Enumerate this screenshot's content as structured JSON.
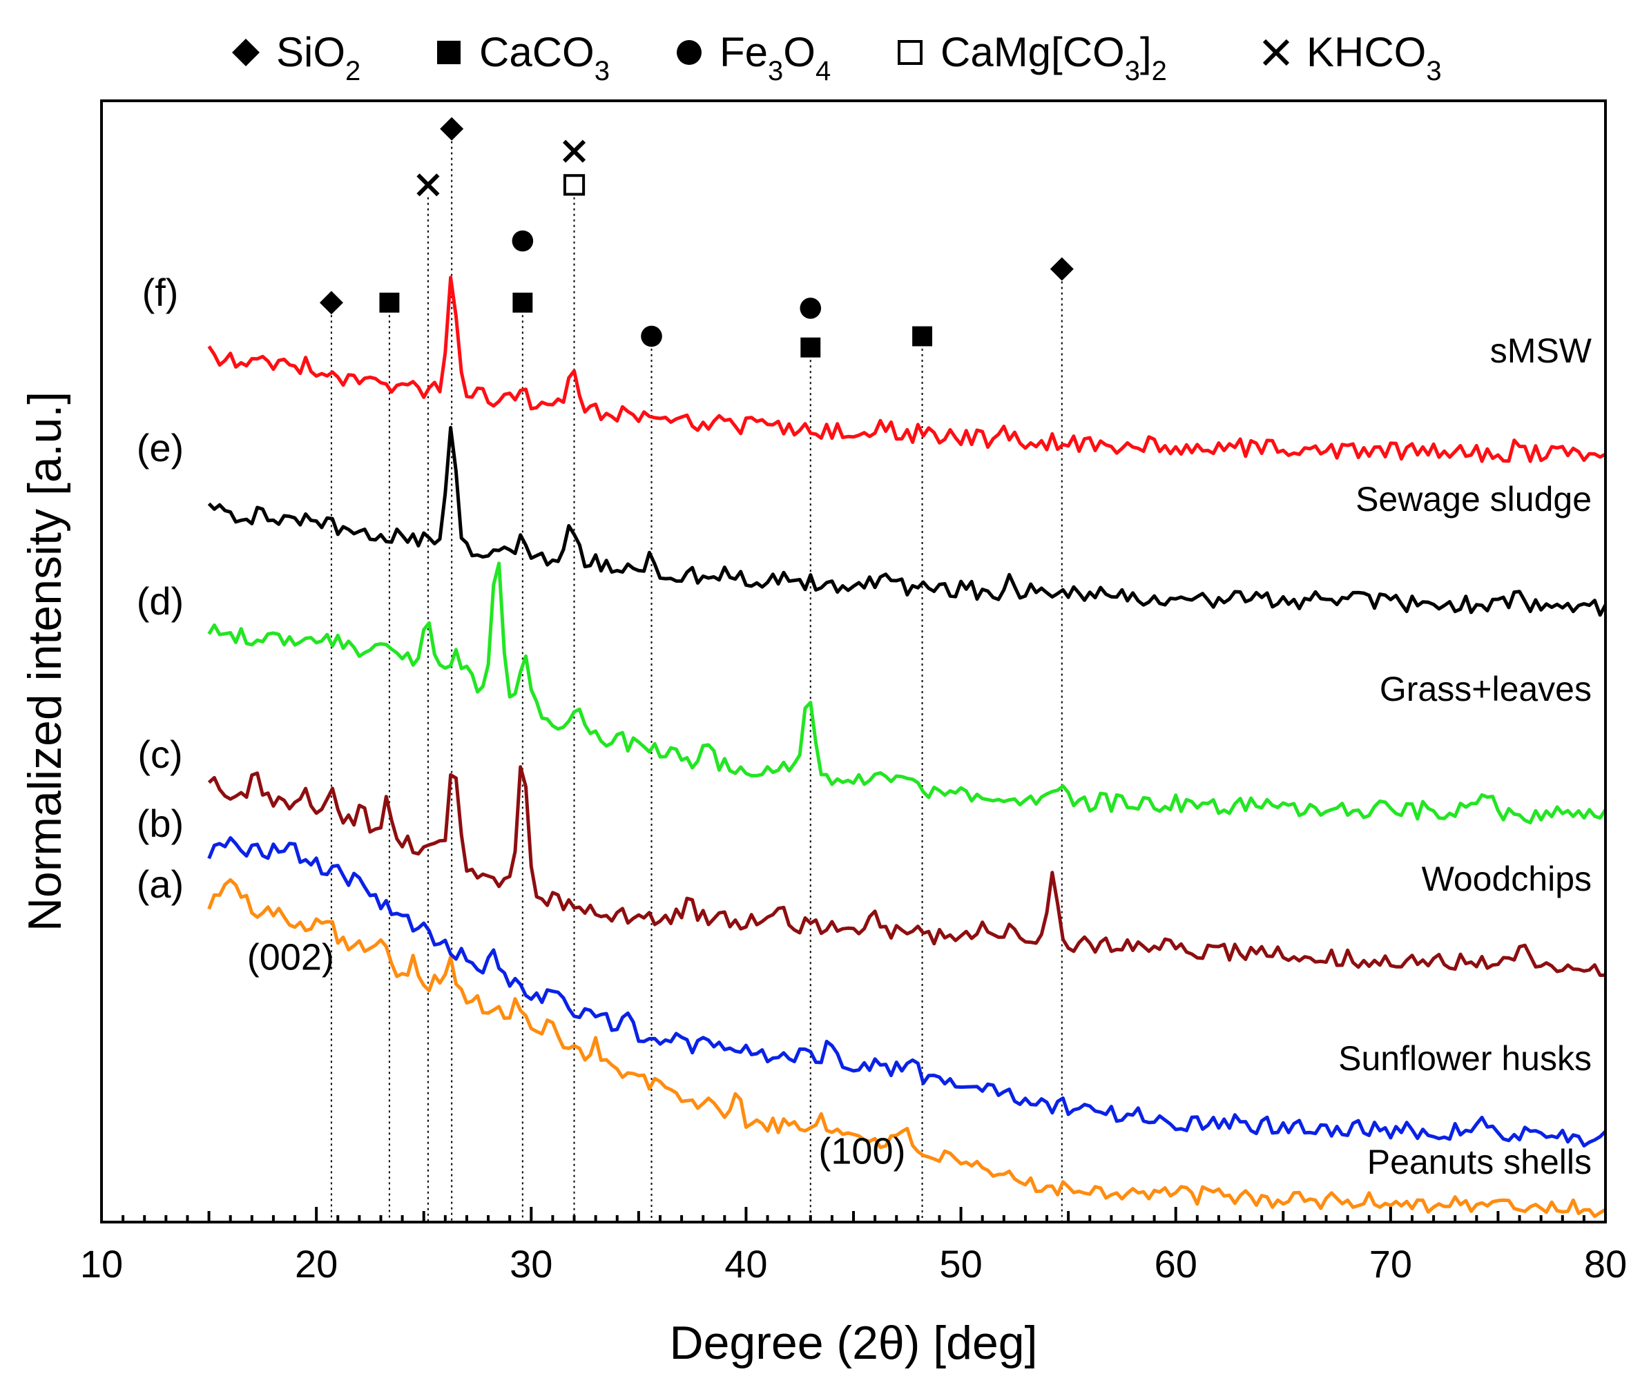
{
  "chart_data": {
    "type": "line",
    "title": "",
    "xlabel": "Degree (2θ) [deg]",
    "ylabel": "Normalized intensity [a.u.]",
    "xlim": [
      10,
      80
    ],
    "xticks": [
      "10",
      "20",
      "30",
      "40",
      "50",
      "60",
      "70",
      "80"
    ],
    "ylim": [
      0,
      100
    ],
    "grid": false,
    "legend": {
      "placement": "top-outside",
      "items": [
        {
          "marker": "diamond",
          "name": "SiO",
          "sub": "2"
        },
        {
          "marker": "square",
          "name": "CaCO",
          "sub": "3"
        },
        {
          "marker": "circle",
          "name": "Fe",
          "sub": "3",
          "name2": "O",
          "sub2": "4"
        },
        {
          "marker": "open-square",
          "name": "CaMg[CO",
          "sub": "3",
          "name2": "]",
          "sub2": "2"
        },
        {
          "marker": "cross",
          "name": "KHCO",
          "sub": "3"
        }
      ]
    },
    "reflections": [
      {
        "x": 20.7,
        "markers": [
          {
            "shape": "diamond",
            "y": 82.0
          }
        ]
      },
      {
        "x": 23.4,
        "markers": [
          {
            "shape": "square",
            "y": 82.0
          }
        ]
      },
      {
        "x": 25.2,
        "markers": [
          {
            "shape": "cross",
            "y": 92.5
          }
        ]
      },
      {
        "x": 26.3,
        "markers": [
          {
            "shape": "diamond",
            "y": 97.5
          }
        ]
      },
      {
        "x": 29.6,
        "markers": [
          {
            "shape": "square",
            "y": 82.0
          },
          {
            "shape": "circle",
            "y": 87.5
          }
        ]
      },
      {
        "x": 32.0,
        "markers": [
          {
            "shape": "open-square",
            "y": 92.5
          },
          {
            "shape": "cross",
            "y": 95.5
          }
        ]
      },
      {
        "x": 35.6,
        "markers": [
          {
            "shape": "circle",
            "y": 79.0
          }
        ]
      },
      {
        "x": 43.0,
        "markers": [
          {
            "shape": "square",
            "y": 78.0
          },
          {
            "shape": "circle",
            "y": 81.5
          }
        ]
      },
      {
        "x": 48.2,
        "markers": [
          {
            "shape": "square",
            "y": 79.0
          }
        ]
      },
      {
        "x": 54.7,
        "markers": [
          {
            "shape": "diamond",
            "y": 85.0
          }
        ]
      }
    ],
    "series": [
      {
        "id": "a",
        "label": "(a)",
        "name": "Peanuts shells",
        "color": "#ff8c10",
        "x": [
          15,
          16,
          17,
          18,
          19,
          20,
          21,
          22,
          23,
          24,
          25,
          26,
          27,
          28,
          29,
          30,
          31,
          32,
          33,
          34,
          36,
          38,
          40,
          42,
          44,
          46,
          48,
          50,
          52,
          55,
          60,
          65,
          70,
          75,
          80
        ],
        "y": [
          28.5,
          29.5,
          28.0,
          27.5,
          27.0,
          26.5,
          25.5,
          24.5,
          23.5,
          22.0,
          21.5,
          21.0,
          20.0,
          19.0,
          18.0,
          17.0,
          16.5,
          15.5,
          14.5,
          13.5,
          12.0,
          10.5,
          9.0,
          8.5,
          8.0,
          7.5,
          6.5,
          5.0,
          4.0,
          3.0,
          2.5,
          2.0,
          1.8,
          1.5,
          1.2
        ],
        "peaks": [
          [
            16.0,
            1.2
          ],
          [
            20.5,
            1.5
          ],
          [
            23.2,
            2.2
          ],
          [
            24.5,
            1.8
          ],
          [
            26.2,
            2.5
          ],
          [
            29.4,
            2.2
          ],
          [
            31.0,
            1.5
          ],
          [
            33.0,
            1.5
          ],
          [
            39.5,
            1.8
          ],
          [
            43.5,
            1.5
          ],
          [
            47.5,
            1.2
          ]
        ]
      },
      {
        "id": "b",
        "label": "(b)",
        "name": "Sunflower husks",
        "color": "#0a22e6",
        "x": [
          15,
          16,
          17,
          18,
          19,
          20,
          21,
          22,
          23,
          24,
          25,
          26,
          27,
          28,
          29,
          30,
          31,
          32,
          34,
          36,
          38,
          40,
          42,
          44,
          46,
          48,
          50,
          52,
          55,
          60,
          65,
          70,
          75,
          80
        ],
        "y": [
          33.0,
          33.5,
          33.2,
          33.0,
          32.8,
          32.0,
          31.2,
          30.0,
          28.5,
          27.0,
          25.5,
          24.5,
          23.5,
          22.5,
          21.5,
          20.5,
          19.8,
          19.0,
          17.5,
          16.2,
          15.8,
          15.2,
          14.7,
          14.5,
          14.0,
          13.2,
          12.2,
          11.5,
          10.2,
          9.0,
          8.6,
          8.3,
          8.0,
          7.5
        ],
        "peaks": [
          [
            18.8,
            1.2
          ],
          [
            25.0,
            1.2
          ],
          [
            28.3,
            1.5
          ],
          [
            31.0,
            1.0
          ],
          [
            34.5,
            1.0
          ],
          [
            43.8,
            1.0
          ],
          [
            47.6,
            1.2
          ],
          [
            63.0,
            0.8
          ],
          [
            74.5,
            1.0
          ]
        ]
      },
      {
        "id": "c",
        "label": "(c)",
        "name": "Woodchips",
        "color": "#8e0e10",
        "x": [
          15,
          16,
          17,
          18,
          19,
          20,
          21,
          22,
          23,
          24,
          25,
          26,
          27,
          28,
          29,
          30,
          31,
          32,
          34,
          36,
          38,
          40,
          42,
          44,
          46,
          48,
          50,
          55,
          60,
          65,
          70,
          75,
          80
        ],
        "y": [
          39.0,
          38.5,
          38.0,
          37.5,
          37.0,
          36.5,
          36.0,
          35.2,
          34.5,
          34.0,
          33.5,
          33.0,
          31.5,
          30.5,
          30.0,
          29.5,
          28.8,
          28.0,
          27.5,
          27.2,
          27.0,
          26.8,
          26.5,
          26.3,
          26.0,
          25.8,
          25.3,
          24.8,
          24.3,
          23.8,
          23.4,
          23.0,
          22.7
        ],
        "peaks": [
          [
            17.1,
            2.0
          ],
          [
            19.5,
            1.5
          ],
          [
            20.6,
            2.5
          ],
          [
            22.1,
            1.8
          ],
          [
            23.3,
            3.5
          ],
          [
            26.4,
            8.5
          ],
          [
            29.6,
            12.5
          ],
          [
            37.4,
            1.5
          ],
          [
            41.6,
            1.8
          ],
          [
            46.0,
            1.2
          ],
          [
            51.0,
            1.5
          ],
          [
            52.3,
            1.8
          ],
          [
            54.3,
            6.5
          ],
          [
            59.8,
            1.2
          ],
          [
            76.0,
            2.0
          ]
        ]
      },
      {
        "id": "d",
        "label": "(d)",
        "name": "Grass+leaves",
        "color": "#22e622",
        "x": [
          15,
          17,
          19,
          21,
          23,
          24,
          25,
          26,
          27,
          28,
          29,
          30,
          31,
          32,
          34,
          36,
          38,
          40,
          42,
          44,
          46,
          48,
          50,
          52,
          54,
          55,
          60,
          65,
          70,
          75,
          80
        ],
        "y": [
          52.5,
          52.2,
          52.0,
          51.5,
          51.0,
          50.5,
          50.0,
          49.5,
          48.5,
          47.5,
          47.0,
          46.0,
          45.0,
          44.0,
          43.0,
          42.0,
          41.0,
          40.5,
          40.0,
          39.5,
          39.3,
          38.8,
          38.0,
          37.6,
          37.4,
          37.5,
          37.3,
          37.0,
          36.8,
          36.5,
          36.2
        ],
        "peaks": [
          [
            18.0,
            1.0
          ],
          [
            21.0,
            1.0
          ],
          [
            25.2,
            3.5
          ],
          [
            26.6,
            1.5
          ],
          [
            28.4,
            12.0
          ],
          [
            29.7,
            4.0
          ],
          [
            32.1,
            1.5
          ],
          [
            38.2,
            1.5
          ],
          [
            41.8,
            1.2
          ],
          [
            42.9,
            8.0
          ],
          [
            46.0,
            1.0
          ],
          [
            54.6,
            2.0
          ],
          [
            74.5,
            1.8
          ]
        ]
      },
      {
        "id": "e",
        "label": "(e)",
        "name": "Sewage sludge",
        "color": "#000000",
        "x": [
          15,
          16,
          17,
          18,
          19,
          20,
          21,
          22,
          23,
          24,
          25,
          26,
          27,
          28,
          29,
          30,
          31,
          32,
          34,
          36,
          38,
          40,
          42,
          44,
          46,
          48,
          50,
          52,
          55,
          60,
          65,
          70,
          75,
          80
        ],
        "y": [
          64.0,
          63.3,
          63.0,
          62.8,
          62.5,
          62.2,
          62.0,
          61.5,
          61.2,
          61.0,
          60.8,
          60.5,
          60.3,
          60.0,
          59.7,
          59.5,
          59.3,
          59.0,
          58.5,
          58.0,
          57.7,
          57.5,
          57.2,
          57.0,
          56.8,
          56.6,
          56.4,
          56.2,
          56.0,
          55.7,
          55.5,
          55.3,
          55.0,
          54.8
        ],
        "peaks": [
          [
            19.5,
            1.0
          ],
          [
            26.3,
            10.5
          ],
          [
            29.6,
            1.5
          ],
          [
            31.9,
            3.2
          ],
          [
            35.6,
            1.0
          ],
          [
            46.5,
            1.0
          ],
          [
            48.2,
            0.8
          ],
          [
            52.2,
            0.8
          ],
          [
            76.0,
            1.0
          ]
        ]
      },
      {
        "id": "f",
        "label": "(f)",
        "name": "sMSW",
        "color": "#ff0e14",
        "x": [
          15,
          16,
          17,
          18,
          19,
          20,
          21,
          22,
          23,
          24,
          25,
          26,
          27,
          28,
          29,
          30,
          31,
          32,
          34,
          36,
          38,
          40,
          42,
          44,
          46,
          48,
          50,
          52,
          55,
          60,
          65,
          70,
          75,
          80
        ],
        "y": [
          77.5,
          76.8,
          76.5,
          76.3,
          76.0,
          75.7,
          75.5,
          75.0,
          74.7,
          74.5,
          74.3,
          74.0,
          73.8,
          73.5,
          73.2,
          73.0,
          72.8,
          72.5,
          72.0,
          71.5,
          71.2,
          71.0,
          70.7,
          70.5,
          70.3,
          70.1,
          69.9,
          69.7,
          69.5,
          69.2,
          69.0,
          68.8,
          68.5,
          68.3
        ],
        "peaks": [
          [
            19.5,
            1.0
          ],
          [
            26.3,
            10.5
          ],
          [
            29.6,
            1.5
          ],
          [
            31.9,
            3.2
          ],
          [
            35.6,
            1.0
          ],
          [
            46.5,
            1.0
          ],
          [
            48.2,
            0.8
          ],
          [
            52.2,
            0.8
          ],
          [
            76.0,
            1.0
          ]
        ]
      }
    ],
    "annotations": [
      {
        "text": "(002)",
        "x": 18.8,
        "y": 22.5
      },
      {
        "text": "(100)",
        "x": 45.4,
        "y": 5.2
      }
    ]
  }
}
